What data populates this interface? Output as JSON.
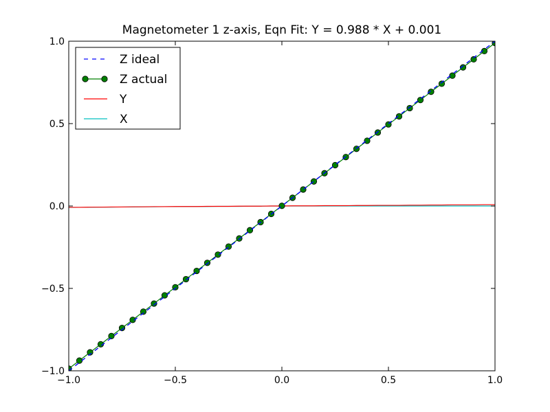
{
  "chart_data": {
    "type": "line",
    "title": "Magnetometer 1 z-axis, Eqn Fit: Y = 0.988 * X + 0.001",
    "xlabel": "",
    "ylabel": "",
    "xlim": [
      -1.0,
      1.0
    ],
    "ylim": [
      -1.0,
      1.0
    ],
    "xticks": [
      -1.0,
      -0.5,
      0.0,
      0.5,
      1.0
    ],
    "xtick_labels": [
      "−1.0",
      "−0.5",
      "0.0",
      "0.5",
      "1.0"
    ],
    "yticks": [
      -1.0,
      -0.5,
      0.0,
      0.5,
      1.0
    ],
    "ytick_labels": [
      "−1.0",
      "−0.5",
      "0.0",
      "0.5",
      "1.0"
    ],
    "grid": false,
    "legend_position": "top-left",
    "x": [
      -1.0,
      -0.95,
      -0.9,
      -0.85,
      -0.8,
      -0.75,
      -0.7,
      -0.65,
      -0.6,
      -0.55,
      -0.5,
      -0.45,
      -0.4,
      -0.35,
      -0.3,
      -0.25,
      -0.2,
      -0.15,
      -0.1,
      -0.05,
      0.0,
      0.05,
      0.1,
      0.15,
      0.2,
      0.25,
      0.3,
      0.35,
      0.4,
      0.45,
      0.5,
      0.55,
      0.6,
      0.65,
      0.7,
      0.75,
      0.8,
      0.85,
      0.9,
      0.95,
      1.0
    ],
    "series": [
      {
        "name": "Z ideal",
        "style": "dashed",
        "color": "#0000ff",
        "values": [
          -1.0,
          -0.95,
          -0.9,
          -0.85,
          -0.8,
          -0.75,
          -0.7,
          -0.65,
          -0.6,
          -0.55,
          -0.5,
          -0.45,
          -0.4,
          -0.35,
          -0.3,
          -0.25,
          -0.2,
          -0.15,
          -0.1,
          -0.05,
          0.0,
          0.05,
          0.1,
          0.15,
          0.2,
          0.25,
          0.3,
          0.35,
          0.4,
          0.45,
          0.5,
          0.55,
          0.6,
          0.65,
          0.7,
          0.75,
          0.8,
          0.85,
          0.9,
          0.95,
          1.0
        ]
      },
      {
        "name": "Z actual",
        "style": "solid-markers",
        "color": "#008000",
        "values": [
          -0.987,
          -0.938,
          -0.888,
          -0.839,
          -0.789,
          -0.74,
          -0.691,
          -0.641,
          -0.592,
          -0.542,
          -0.493,
          -0.444,
          -0.394,
          -0.345,
          -0.295,
          -0.246,
          -0.197,
          -0.147,
          -0.098,
          -0.048,
          0.001,
          0.05,
          0.1,
          0.149,
          0.199,
          0.248,
          0.297,
          0.347,
          0.396,
          0.446,
          0.495,
          0.544,
          0.594,
          0.643,
          0.693,
          0.742,
          0.791,
          0.841,
          0.89,
          0.94,
          0.989
        ]
      },
      {
        "name": "Y",
        "style": "solid",
        "color": "#ff0000",
        "values": [
          -0.008,
          -0.008,
          -0.007,
          -0.007,
          -0.006,
          -0.006,
          -0.005,
          -0.005,
          -0.004,
          -0.004,
          -0.003,
          -0.003,
          -0.003,
          -0.002,
          -0.002,
          -0.002,
          -0.001,
          -0.001,
          -0.001,
          0.0,
          0.0,
          0.001,
          0.001,
          0.001,
          0.002,
          0.002,
          0.002,
          0.003,
          0.003,
          0.004,
          0.004,
          0.004,
          0.005,
          0.005,
          0.006,
          0.006,
          0.007,
          0.007,
          0.007,
          0.008,
          0.008
        ]
      },
      {
        "name": "X",
        "style": "solid",
        "color": "#00bfbf",
        "values": [
          -0.009,
          -0.008,
          -0.008,
          -0.007,
          -0.007,
          -0.006,
          -0.006,
          -0.005,
          -0.005,
          -0.004,
          -0.004,
          -0.003,
          -0.003,
          -0.003,
          -0.002,
          -0.002,
          -0.002,
          -0.001,
          -0.001,
          0.0,
          0.0,
          0.0,
          0.0,
          0.0,
          0.0,
          0.0,
          0.0,
          0.0,
          0.0,
          0.0,
          0.0,
          0.0,
          0.0,
          0.0,
          0.0,
          0.0,
          0.0,
          0.0,
          0.0,
          0.0,
          0.0
        ]
      }
    ]
  }
}
